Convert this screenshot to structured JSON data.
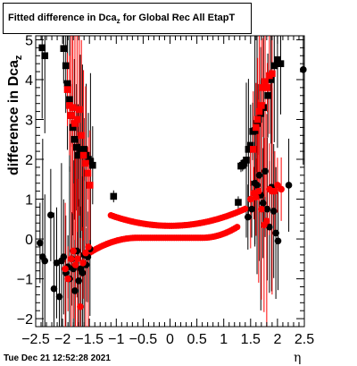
{
  "chart_data": {
    "type": "scatter",
    "title": "Fitted difference in Dca",
    "title_subscript": "z",
    "title_suffix": " for Global Rec All EtapT",
    "ylabel": "difference in Dca",
    "ylabel_subscript": "z",
    "xlabel": "η",
    "xlim": [
      -2.5,
      2.5
    ],
    "ylim": [
      -2.2,
      5.1
    ],
    "x_ticks": [
      -2.5,
      -2,
      -1.5,
      -1,
      -0.5,
      0,
      0.5,
      1,
      1.5,
      2,
      2.5
    ],
    "x_tick_labels": [
      "−2.5",
      "−2",
      "−1.5",
      "−1",
      "−0.5",
      "0",
      "0.5",
      "1",
      "1.5",
      "2",
      "2.5"
    ],
    "y_ticks": [
      -2,
      -1,
      0,
      1,
      2,
      3,
      4,
      5
    ],
    "y_tick_labels": [
      "−2",
      "−1",
      "0",
      "1",
      "2",
      "3",
      "4",
      "5"
    ],
    "grid": false,
    "legend": "none",
    "series": [
      {
        "color": "#000000",
        "marker": "square",
        "points": [
          [
            -2.38,
            4.8
          ],
          [
            -2.33,
            4.6
          ],
          [
            -1.98,
            4.78
          ],
          [
            -1.94,
            4.35
          ],
          [
            -1.91,
            3.9
          ],
          [
            -1.87,
            3.5
          ],
          [
            -1.84,
            3.1
          ],
          [
            -1.81,
            2.8
          ],
          [
            -1.78,
            2.5
          ],
          [
            -1.74,
            2.3
          ],
          [
            -1.71,
            2.1
          ],
          [
            -1.67,
            2.15
          ],
          [
            -1.63,
            2.2
          ],
          [
            -1.6,
            2.25
          ],
          [
            -1.56,
            2.1
          ],
          [
            -1.52,
            2.0
          ],
          [
            -1.48,
            1.95
          ],
          [
            -1.44,
            1.85
          ],
          [
            -1.05,
            1.07
          ],
          [
            1.27,
            0.92
          ],
          [
            1.32,
            1.83
          ],
          [
            1.35,
            1.85
          ],
          [
            1.38,
            1.9
          ],
          [
            1.42,
            1.98
          ],
          [
            1.46,
            2.25
          ],
          [
            1.5,
            2.35
          ],
          [
            1.54,
            2.7
          ],
          [
            1.58,
            2.72
          ],
          [
            1.62,
            2.9
          ],
          [
            1.65,
            3.0
          ],
          [
            1.69,
            3.15
          ],
          [
            1.74,
            3.3
          ],
          [
            1.82,
            3.6
          ],
          [
            1.88,
            4.0
          ],
          [
            1.94,
            4.35
          ],
          [
            2.0,
            4.5
          ],
          [
            2.06,
            4.4
          ]
        ]
      },
      {
        "color": "#000000",
        "marker": "circle",
        "points": [
          [
            -2.42,
            -0.1
          ],
          [
            -2.37,
            -0.45
          ],
          [
            -2.33,
            -0.55
          ],
          [
            -2.22,
            0.6
          ],
          [
            -2.16,
            -1.25
          ],
          [
            -2.11,
            -0.6
          ],
          [
            -2.06,
            -1.45
          ],
          [
            -2.02,
            -0.55
          ],
          [
            -1.98,
            -0.45
          ],
          [
            -1.94,
            -0.85
          ],
          [
            -1.9,
            -0.7
          ],
          [
            -1.87,
            -1.0
          ],
          [
            -1.83,
            -0.5
          ],
          [
            -1.8,
            -0.75
          ],
          [
            -1.77,
            -1.3
          ],
          [
            -1.73,
            -0.3
          ],
          [
            -1.7,
            -1.05
          ],
          [
            -1.66,
            -0.75
          ],
          [
            -1.63,
            -0.85
          ],
          [
            -1.6,
            -0.4
          ],
          [
            -1.56,
            -0.65
          ],
          [
            -1.53,
            -0.45
          ],
          [
            -1.49,
            -0.25
          ],
          [
            1.45,
            0.55
          ],
          [
            1.52,
            0.75
          ],
          [
            1.58,
            1.4
          ],
          [
            1.62,
            1.35
          ],
          [
            1.66,
            1.6
          ],
          [
            1.69,
            1.1
          ],
          [
            1.73,
            0.9
          ],
          [
            1.77,
            1.7
          ],
          [
            1.81,
            0.75
          ],
          [
            1.85,
            0.3
          ],
          [
            1.89,
            1.3
          ],
          [
            1.93,
            0.7
          ],
          [
            1.97,
            0.15
          ],
          [
            2.01,
            -0.05
          ],
          [
            2.21,
            1.35
          ],
          [
            2.48,
            4.25
          ]
        ]
      },
      {
        "color": "#ff0000",
        "marker": "square",
        "points": [
          [
            -1.91,
            3.75
          ],
          [
            -1.87,
            3.35
          ],
          [
            -1.84,
            3.1
          ],
          [
            -1.81,
            3.3
          ],
          [
            -1.77,
            2.9
          ],
          [
            -1.73,
            3.0
          ],
          [
            -1.69,
            3.25
          ],
          [
            -1.65,
            2.6
          ],
          [
            -1.61,
            2.1
          ],
          [
            -1.57,
            1.9
          ],
          [
            -1.53,
            1.65
          ],
          [
            -1.49,
            1.35
          ],
          [
            1.55,
            2.25
          ],
          [
            1.6,
            2.8
          ],
          [
            1.63,
            3.0
          ],
          [
            1.66,
            3.2
          ],
          [
            1.7,
            3.35
          ],
          [
            1.73,
            3.8
          ],
          [
            1.77,
            3.95
          ],
          [
            1.81,
            3.8
          ],
          [
            1.85,
            4.1
          ],
          [
            1.9,
            4.15
          ]
        ]
      },
      {
        "color": "#ff0000",
        "marker": "circle",
        "points": [
          [
            -1.95,
            -0.75
          ],
          [
            -1.9,
            -1.0
          ],
          [
            -1.84,
            -0.5
          ],
          [
            -1.8,
            -0.3
          ],
          [
            -1.76,
            -0.65
          ],
          [
            -1.72,
            -0.5
          ],
          [
            -1.67,
            -1.7
          ],
          [
            -1.62,
            -0.6
          ],
          [
            -1.57,
            -0.35
          ],
          [
            -1.52,
            -0.2
          ],
          [
            1.5,
            1.0
          ],
          [
            1.56,
            1.15
          ],
          [
            1.6,
            1.05
          ],
          [
            1.65,
            1.2
          ],
          [
            1.7,
            0.75
          ],
          [
            1.75,
            0.35
          ],
          [
            1.8,
            0.45
          ],
          [
            1.85,
            1.25
          ],
          [
            1.9,
            1.2
          ],
          [
            1.95,
            1.2
          ],
          [
            2.0,
            1.35
          ],
          [
            2.07,
            1.25
          ]
        ]
      }
    ],
    "red_curve_upper": {
      "x_range": [
        -1.1,
        1.4
      ],
      "y_at_edge": 0.67,
      "y_min": 0.33
    },
    "red_curve_lower": {
      "x_range": [
        -1.5,
        1.25
      ],
      "y_start": -0.35,
      "y_end": 0.3,
      "y_plateau": 0.03
    }
  },
  "footer": {
    "timestamp": "Tue Dec 21 12:52:28 2021"
  }
}
